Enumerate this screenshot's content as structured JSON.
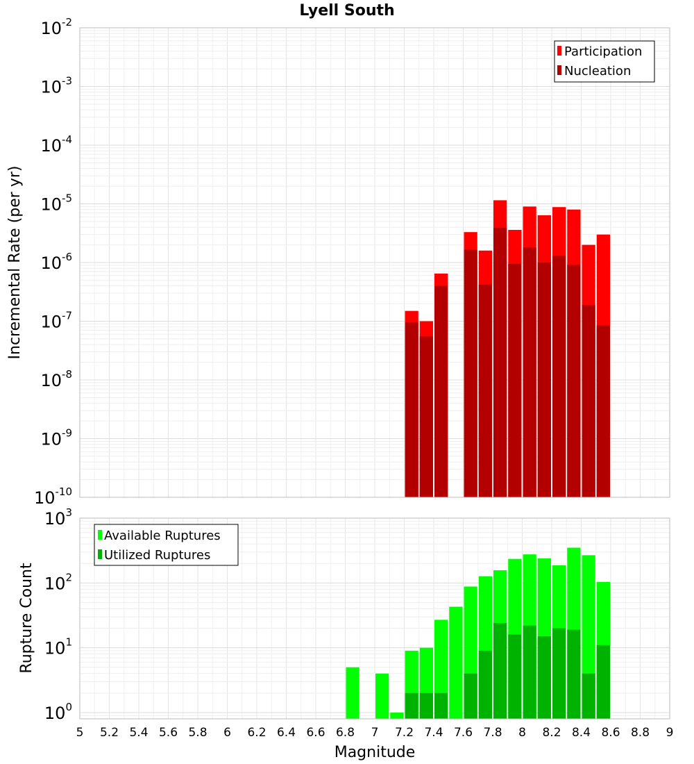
{
  "chart_data": [
    {
      "type": "bar",
      "title": "Lyell South",
      "xlabel": "",
      "ylabel": "Incremental Rate (per yr)",
      "yscale": "log",
      "ylim": [
        1e-10,
        0.01
      ],
      "ytick_labels": [
        {
          "base": "10",
          "exp": "-2"
        },
        {
          "base": "10",
          "exp": "-3"
        },
        {
          "base": "10",
          "exp": "-4"
        },
        {
          "base": "10",
          "exp": "-5"
        },
        {
          "base": "10",
          "exp": "-6"
        },
        {
          "base": "10",
          "exp": "-7"
        },
        {
          "base": "10",
          "exp": "-8"
        },
        {
          "base": "10",
          "exp": "-9"
        },
        {
          "base": "10",
          "exp": "-10"
        }
      ],
      "xlim": [
        5,
        9
      ],
      "grid": true,
      "legend_position": "top-right",
      "x": [
        7.25,
        7.35,
        7.45,
        7.55,
        7.65,
        7.75,
        7.85,
        7.95,
        8.05,
        8.15,
        8.25,
        8.35,
        8.45,
        8.55
      ],
      "series": [
        {
          "name": "Participation",
          "color": "#ff0000",
          "values": [
            1.5e-07,
            1e-07,
            6.5e-07,
            null,
            3.3e-06,
            1.6e-06,
            1.15e-05,
            3.6e-06,
            9e-06,
            6.4e-06,
            8.8e-06,
            8e-06,
            2e-06,
            3e-06
          ]
        },
        {
          "name": "Nucleation",
          "color": "#b20000",
          "values": [
            9.5e-08,
            5.5e-08,
            4e-07,
            null,
            1.65e-06,
            4.2e-07,
            3.9e-06,
            9.5e-07,
            1.8e-06,
            1e-06,
            1.3e-06,
            9.2e-07,
            1.9e-07,
            8.5e-08
          ]
        }
      ]
    },
    {
      "type": "bar",
      "title": "",
      "xlabel": "Magnitude",
      "ylabel": "Rupture Count",
      "yscale": "log",
      "ylim": [
        0.8,
        1000
      ],
      "ytick_labels": [
        {
          "base": "10",
          "exp": "3"
        },
        {
          "base": "10",
          "exp": "2"
        },
        {
          "base": "10",
          "exp": "1"
        },
        {
          "base": "10",
          "exp": "0"
        }
      ],
      "xlim": [
        5,
        9
      ],
      "xticks": [
        "5",
        "5.2",
        "5.4",
        "5.6",
        "5.8",
        "6",
        "6.2",
        "6.4",
        "6.6",
        "6.8",
        "7",
        "7.2",
        "7.4",
        "7.6",
        "7.8",
        "8",
        "8.2",
        "8.4",
        "8.6",
        "8.8",
        "9"
      ],
      "grid": true,
      "legend_position": "top-left",
      "x": [
        6.85,
        6.95,
        7.05,
        7.15,
        7.25,
        7.35,
        7.45,
        7.55,
        7.65,
        7.75,
        7.85,
        7.95,
        8.05,
        8.15,
        8.25,
        8.35,
        8.45,
        8.55
      ],
      "series": [
        {
          "name": "Available Ruptures",
          "color": "#00ff00",
          "values": [
            5,
            null,
            4,
            1,
            9,
            10,
            27,
            43,
            88,
            127,
            157,
            235,
            276,
            240,
            188,
            350,
            268,
            104
          ]
        },
        {
          "name": "Utilized Ruptures",
          "color": "#00b200",
          "values": [
            null,
            null,
            null,
            null,
            2,
            2,
            2,
            null,
            4,
            9,
            24,
            16,
            22,
            15,
            20,
            19,
            4,
            11
          ]
        }
      ]
    }
  ]
}
